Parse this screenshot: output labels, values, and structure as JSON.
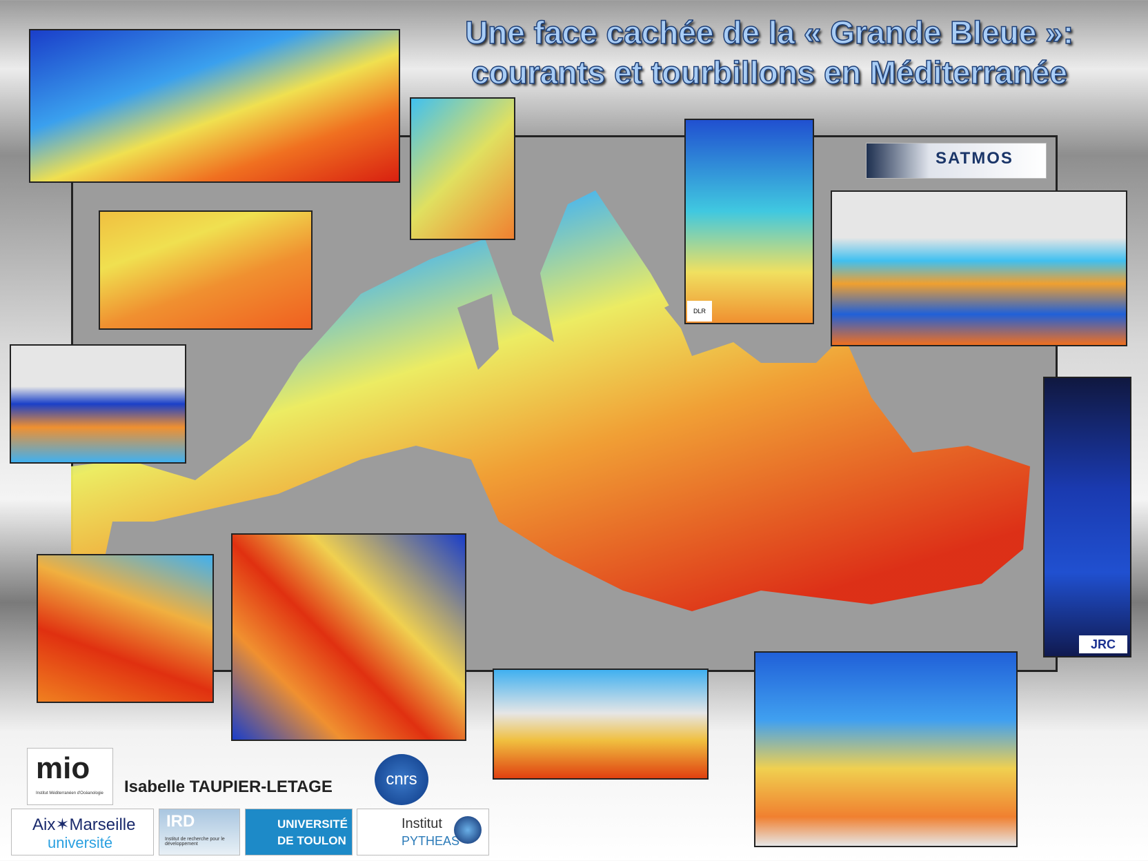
{
  "header": {
    "title_line1": "Une face cachée de la « Grande Bleue »:",
    "title_line2": "courants et tourbillons en Méditerranée"
  },
  "credits": {
    "author": "Isabelle TAUPIER-LETAGE"
  },
  "logos": {
    "satmos": "SATMOS",
    "jrc": "JRC",
    "dlr": "DLR",
    "mio": "mio",
    "mio_sub": "Institut Méditerranéen d'Océanologie",
    "cnrs": "cnrs",
    "amu_line1": "Aix✶Marseille",
    "amu_line2": "université",
    "ird": "IRD",
    "ird_sub": "Institut de recherche pour le développement",
    "toulon_line1": "UNIVERSITÉ",
    "toulon_line2": "DE TOULON",
    "pytheas_line1": "Institut",
    "pytheas_line2": "PYTHEAS"
  }
}
